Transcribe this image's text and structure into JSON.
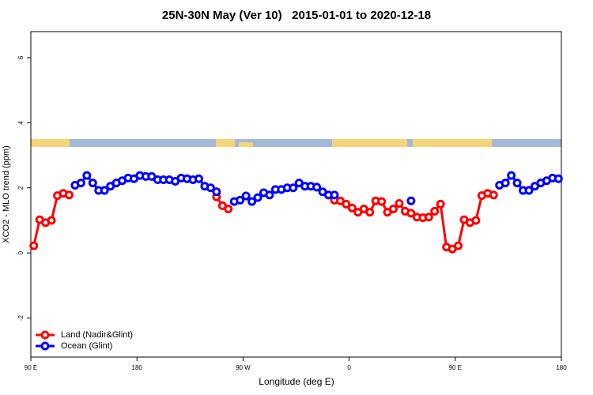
{
  "chart_data": {
    "type": "line",
    "title": "25N-30N May (Ver 10)   2015-01-01 to 2020-12-18",
    "x_label": "Longitude (deg E)",
    "y_label": "XCO2 - MLO trend (ppm)",
    "xlim": [
      90,
      540
    ],
    "xticks": [
      {
        "value": 90,
        "label": "90 E"
      },
      {
        "value": 180,
        "label": "180"
      },
      {
        "value": 270,
        "label": "90 W"
      },
      {
        "value": 360,
        "label": "0"
      },
      {
        "value": 450,
        "label": "90 E"
      },
      {
        "value": 540,
        "label": "180"
      }
    ],
    "ylim": [
      -3.2,
      6.8
    ],
    "yticks": [
      -2,
      0,
      2,
      4,
      6
    ],
    "legend": "bottom-left",
    "x": [
      92.5,
      97.5,
      102.5,
      107.5,
      112.5,
      117.5,
      122.5,
      127.5,
      132.5,
      137.5,
      142.5,
      147.5,
      152.5,
      157.5,
      162.5,
      167.5,
      172.5,
      177.5,
      182.5,
      187.5,
      192.5,
      197.5,
      202.5,
      207.5,
      212.5,
      217.5,
      222.5,
      227.5,
      232.5,
      237.5,
      242.5,
      247.5,
      252.5,
      257.5,
      262.5,
      267.5,
      272.5,
      277.5,
      282.5,
      287.5,
      292.5,
      297.5,
      302.5,
      307.5,
      312.5,
      317.5,
      322.5,
      327.5,
      332.5,
      337.5,
      342.5,
      347.5,
      352.5,
      357.5,
      362.5,
      367.5,
      372.5,
      377.5,
      382.5,
      387.5,
      392.5,
      397.5,
      402.5,
      407.5,
      412.5,
      417.5,
      422.5,
      427.5,
      432.5,
      437.5,
      442.5,
      447.5,
      452.5,
      457.5,
      462.5,
      467.5,
      472.5,
      477.5,
      482.5,
      487.5,
      492.5,
      497.5,
      502.5,
      507.5,
      512.5,
      517.5,
      522.5,
      527.5,
      532.5,
      537.5
    ],
    "series": [
      {
        "name": "Land (Nadir&Glint)",
        "color": "#ff0000",
        "values": [
          0.22,
          1.02,
          0.93,
          1.0,
          1.76,
          1.83,
          1.78,
          null,
          null,
          null,
          null,
          null,
          null,
          null,
          null,
          null,
          null,
          null,
          null,
          null,
          null,
          null,
          null,
          null,
          null,
          null,
          null,
          null,
          null,
          null,
          null,
          1.72,
          1.45,
          1.35,
          null,
          null,
          null,
          null,
          null,
          null,
          null,
          null,
          null,
          null,
          null,
          null,
          null,
          null,
          null,
          null,
          null,
          1.62,
          1.6,
          1.5,
          1.38,
          1.25,
          1.35,
          1.25,
          1.6,
          1.58,
          1.25,
          1.35,
          1.52,
          1.28,
          1.22,
          1.1,
          1.08,
          1.1,
          1.28,
          1.5,
          0.18,
          0.12,
          0.22,
          1.02,
          0.93,
          1.0,
          1.76,
          1.83,
          1.78,
          null,
          null,
          null,
          null,
          null,
          null,
          null,
          null,
          null,
          null,
          null
        ]
      },
      {
        "name": "Ocean (Glint)",
        "color": "#0000ff",
        "values": [
          null,
          null,
          null,
          null,
          null,
          null,
          null,
          2.08,
          2.15,
          2.38,
          2.15,
          1.92,
          1.92,
          2.05,
          2.15,
          2.22,
          2.3,
          2.28,
          2.38,
          2.35,
          2.35,
          2.25,
          2.25,
          2.25,
          2.2,
          2.3,
          2.28,
          2.25,
          2.28,
          2.05,
          2.0,
          1.88,
          null,
          null,
          1.58,
          1.62,
          1.75,
          1.58,
          1.7,
          1.85,
          1.78,
          1.95,
          1.95,
          2.0,
          2.0,
          2.15,
          2.05,
          2.05,
          2.02,
          1.88,
          1.78,
          1.78,
          null,
          null,
          null,
          null,
          null,
          null,
          null,
          null,
          null,
          null,
          null,
          null,
          1.6,
          null,
          null,
          null,
          null,
          null,
          null,
          null,
          null,
          null,
          null,
          null,
          null,
          null,
          null,
          2.08,
          2.15,
          2.38,
          2.15,
          1.92,
          1.92,
          2.05,
          2.15,
          2.22,
          2.3,
          2.28
        ]
      }
    ]
  }
}
